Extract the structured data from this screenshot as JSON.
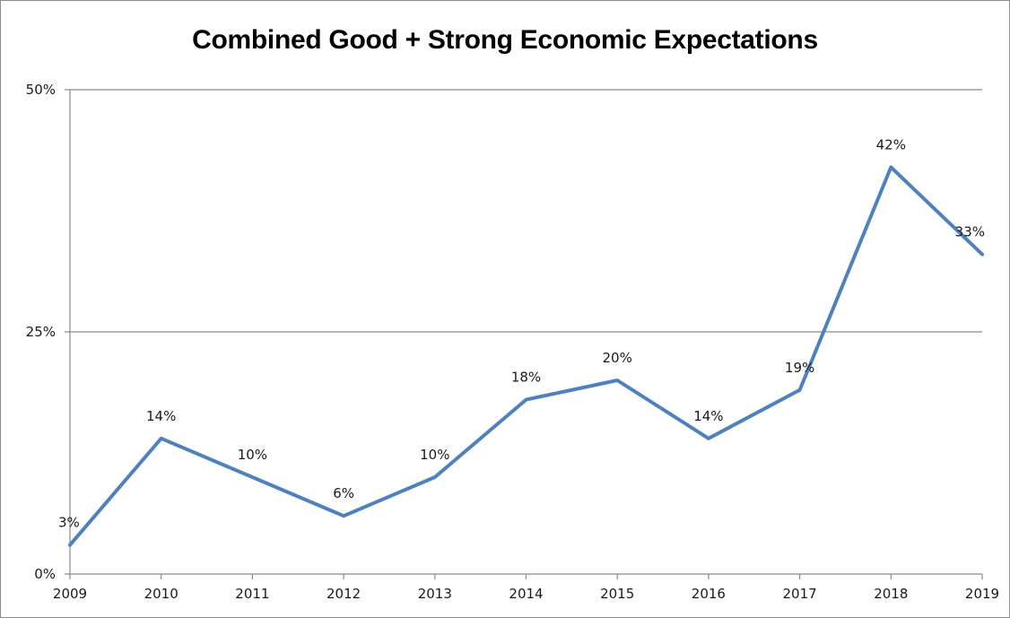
{
  "chart_data": {
    "type": "line",
    "title": "Combined Good + Strong Economic Expectations",
    "xlabel": "",
    "ylabel": "",
    "categories": [
      "2009",
      "2010",
      "2011",
      "2012",
      "2013",
      "2014",
      "2015",
      "2016",
      "2017",
      "2018",
      "2019"
    ],
    "series": [
      {
        "values": [
          3,
          14,
          10,
          6,
          10,
          18,
          20,
          14,
          19,
          42,
          33
        ],
        "data_labels": [
          "3%",
          "14%",
          "10%",
          "6%",
          "10%",
          "18%",
          "20%",
          "14%",
          "19%",
          "42%",
          "33%"
        ],
        "color": "#4f81bd"
      }
    ],
    "ylim": [
      0,
      50
    ],
    "yticks": [
      0,
      25,
      50
    ],
    "ytick_labels": [
      "0%",
      "25%",
      "50%"
    ],
    "grid": "horizontal",
    "legend": "none"
  }
}
